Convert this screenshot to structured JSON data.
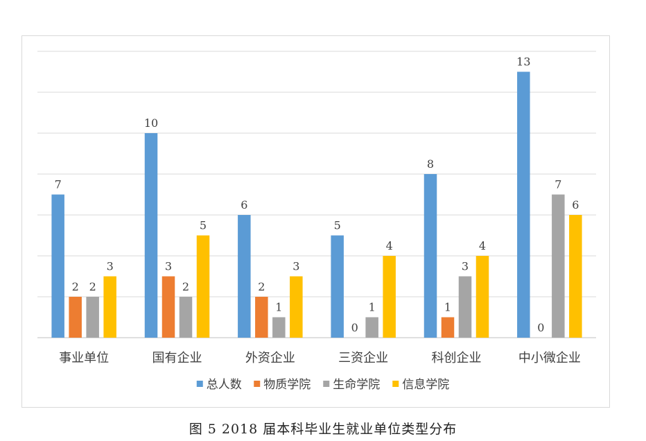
{
  "caption": "图 5 2018 届本科毕业生就业单位类型分布",
  "chart_data": {
    "type": "bar",
    "categories": [
      "事业单位",
      "国有企业",
      "外资企业",
      "三资企业",
      "科创企业",
      "中小微企业"
    ],
    "series": [
      {
        "name": "总人数",
        "color": "#5b9bd5",
        "values": [
          7,
          10,
          6,
          5,
          8,
          13
        ]
      },
      {
        "name": "物质学院",
        "color": "#ed7d31",
        "values": [
          2,
          3,
          2,
          0,
          1,
          0
        ]
      },
      {
        "name": "生命学院",
        "color": "#a5a5a5",
        "values": [
          2,
          2,
          1,
          1,
          3,
          7
        ]
      },
      {
        "name": "信息学院",
        "color": "#ffc000",
        "values": [
          3,
          5,
          3,
          4,
          4,
          6
        ]
      }
    ],
    "ylim": [
      0,
      14
    ],
    "grid": true,
    "legend_position": "bottom",
    "data_labels": true
  }
}
